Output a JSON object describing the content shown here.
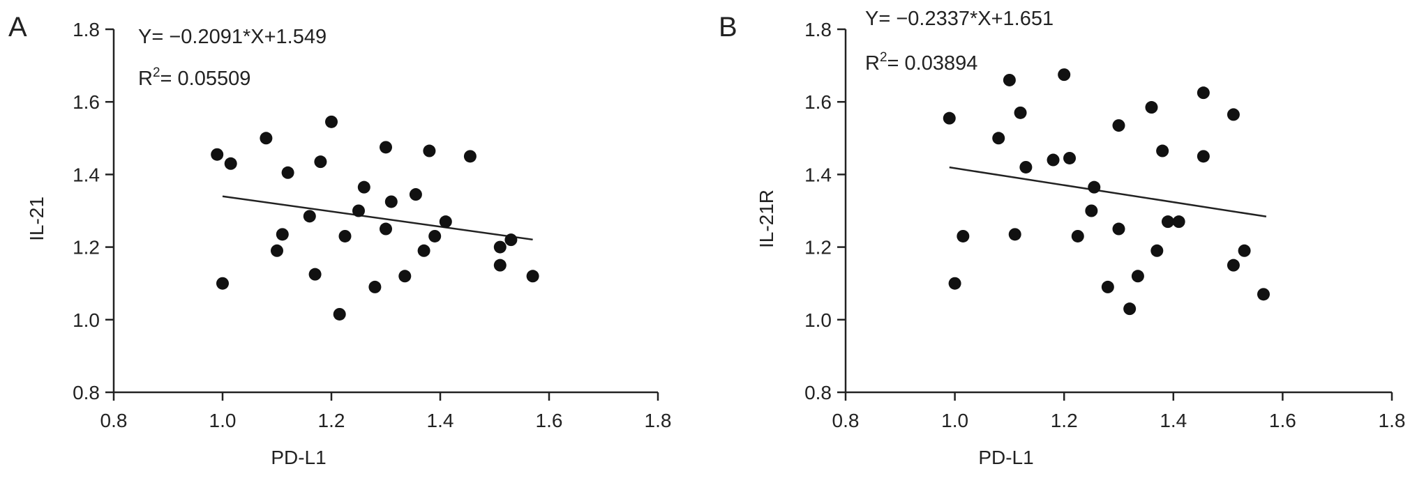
{
  "chart_data": [
    {
      "type": "scatter",
      "panel_label": "A",
      "xlabel": "PD-L1",
      "ylabel": "IL-21",
      "xlim": [
        0.8,
        1.8
      ],
      "ylim": [
        0.8,
        1.8
      ],
      "xticks": [
        "0.8",
        "1.0",
        "1.2",
        "1.4",
        "1.6",
        "1.8"
      ],
      "yticks": [
        "0.8",
        "1.0",
        "1.2",
        "1.4",
        "1.6",
        "1.8"
      ],
      "equation": "Y= −0.2091*X+1.549",
      "r2_prefix": "R",
      "r2_sup": "2",
      "r2_value": "= 0.05509",
      "fit": {
        "slope": -0.2091,
        "intercept": 1.549,
        "x_range": [
          1.0,
          1.57
        ]
      },
      "points": [
        {
          "x": 0.99,
          "y": 1.455
        },
        {
          "x": 1.0,
          "y": 1.1
        },
        {
          "x": 1.015,
          "y": 1.43
        },
        {
          "x": 1.08,
          "y": 1.5
        },
        {
          "x": 1.1,
          "y": 1.19
        },
        {
          "x": 1.11,
          "y": 1.235
        },
        {
          "x": 1.12,
          "y": 1.405
        },
        {
          "x": 1.16,
          "y": 1.285
        },
        {
          "x": 1.17,
          "y": 1.125
        },
        {
          "x": 1.18,
          "y": 1.435
        },
        {
          "x": 1.2,
          "y": 1.545
        },
        {
          "x": 1.215,
          "y": 1.015
        },
        {
          "x": 1.225,
          "y": 1.23
        },
        {
          "x": 1.25,
          "y": 1.3
        },
        {
          "x": 1.26,
          "y": 1.365
        },
        {
          "x": 1.28,
          "y": 1.09
        },
        {
          "x": 1.3,
          "y": 1.475
        },
        {
          "x": 1.3,
          "y": 1.25
        },
        {
          "x": 1.31,
          "y": 1.325
        },
        {
          "x": 1.335,
          "y": 1.12
        },
        {
          "x": 1.355,
          "y": 1.345
        },
        {
          "x": 1.37,
          "y": 1.19
        },
        {
          "x": 1.38,
          "y": 1.465
        },
        {
          "x": 1.39,
          "y": 1.23
        },
        {
          "x": 1.41,
          "y": 1.27
        },
        {
          "x": 1.455,
          "y": 1.45
        },
        {
          "x": 1.51,
          "y": 1.2
        },
        {
          "x": 1.51,
          "y": 1.15
        },
        {
          "x": 1.53,
          "y": 1.22
        },
        {
          "x": 1.57,
          "y": 1.12
        }
      ]
    },
    {
      "type": "scatter",
      "panel_label": "B",
      "xlabel": "PD-L1",
      "ylabel": "IL-21R",
      "xlim": [
        0.8,
        1.8
      ],
      "ylim": [
        0.8,
        1.8
      ],
      "xticks": [
        "0.8",
        "1.0",
        "1.2",
        "1.4",
        "1.6",
        "1.8"
      ],
      "yticks": [
        "0.8",
        "1.0",
        "1.2",
        "1.4",
        "1.6",
        "1.8"
      ],
      "equation": "Y= −0.2337*X+1.651",
      "r2_prefix": "R",
      "r2_sup": "2",
      "r2_value": "= 0.03894",
      "fit": {
        "slope": -0.2337,
        "intercept": 1.651,
        "x_range": [
          0.99,
          1.57
        ]
      },
      "points": [
        {
          "x": 0.99,
          "y": 1.555
        },
        {
          "x": 1.0,
          "y": 1.1
        },
        {
          "x": 1.015,
          "y": 1.23
        },
        {
          "x": 1.08,
          "y": 1.5
        },
        {
          "x": 1.1,
          "y": 1.66
        },
        {
          "x": 1.11,
          "y": 1.235
        },
        {
          "x": 1.12,
          "y": 1.57
        },
        {
          "x": 1.13,
          "y": 1.42
        },
        {
          "x": 1.18,
          "y": 1.44
        },
        {
          "x": 1.2,
          "y": 1.675
        },
        {
          "x": 1.21,
          "y": 1.445
        },
        {
          "x": 1.225,
          "y": 1.23
        },
        {
          "x": 1.25,
          "y": 1.3
        },
        {
          "x": 1.255,
          "y": 1.365
        },
        {
          "x": 1.28,
          "y": 1.09
        },
        {
          "x": 1.3,
          "y": 1.535
        },
        {
          "x": 1.3,
          "y": 1.25
        },
        {
          "x": 1.32,
          "y": 1.03
        },
        {
          "x": 1.335,
          "y": 1.12
        },
        {
          "x": 1.36,
          "y": 1.585
        },
        {
          "x": 1.37,
          "y": 1.19
        },
        {
          "x": 1.38,
          "y": 1.465
        },
        {
          "x": 1.39,
          "y": 1.27
        },
        {
          "x": 1.41,
          "y": 1.27
        },
        {
          "x": 1.455,
          "y": 1.625
        },
        {
          "x": 1.455,
          "y": 1.45
        },
        {
          "x": 1.51,
          "y": 1.565
        },
        {
          "x": 1.51,
          "y": 1.15
        },
        {
          "x": 1.53,
          "y": 1.19
        },
        {
          "x": 1.565,
          "y": 1.07
        }
      ]
    }
  ]
}
